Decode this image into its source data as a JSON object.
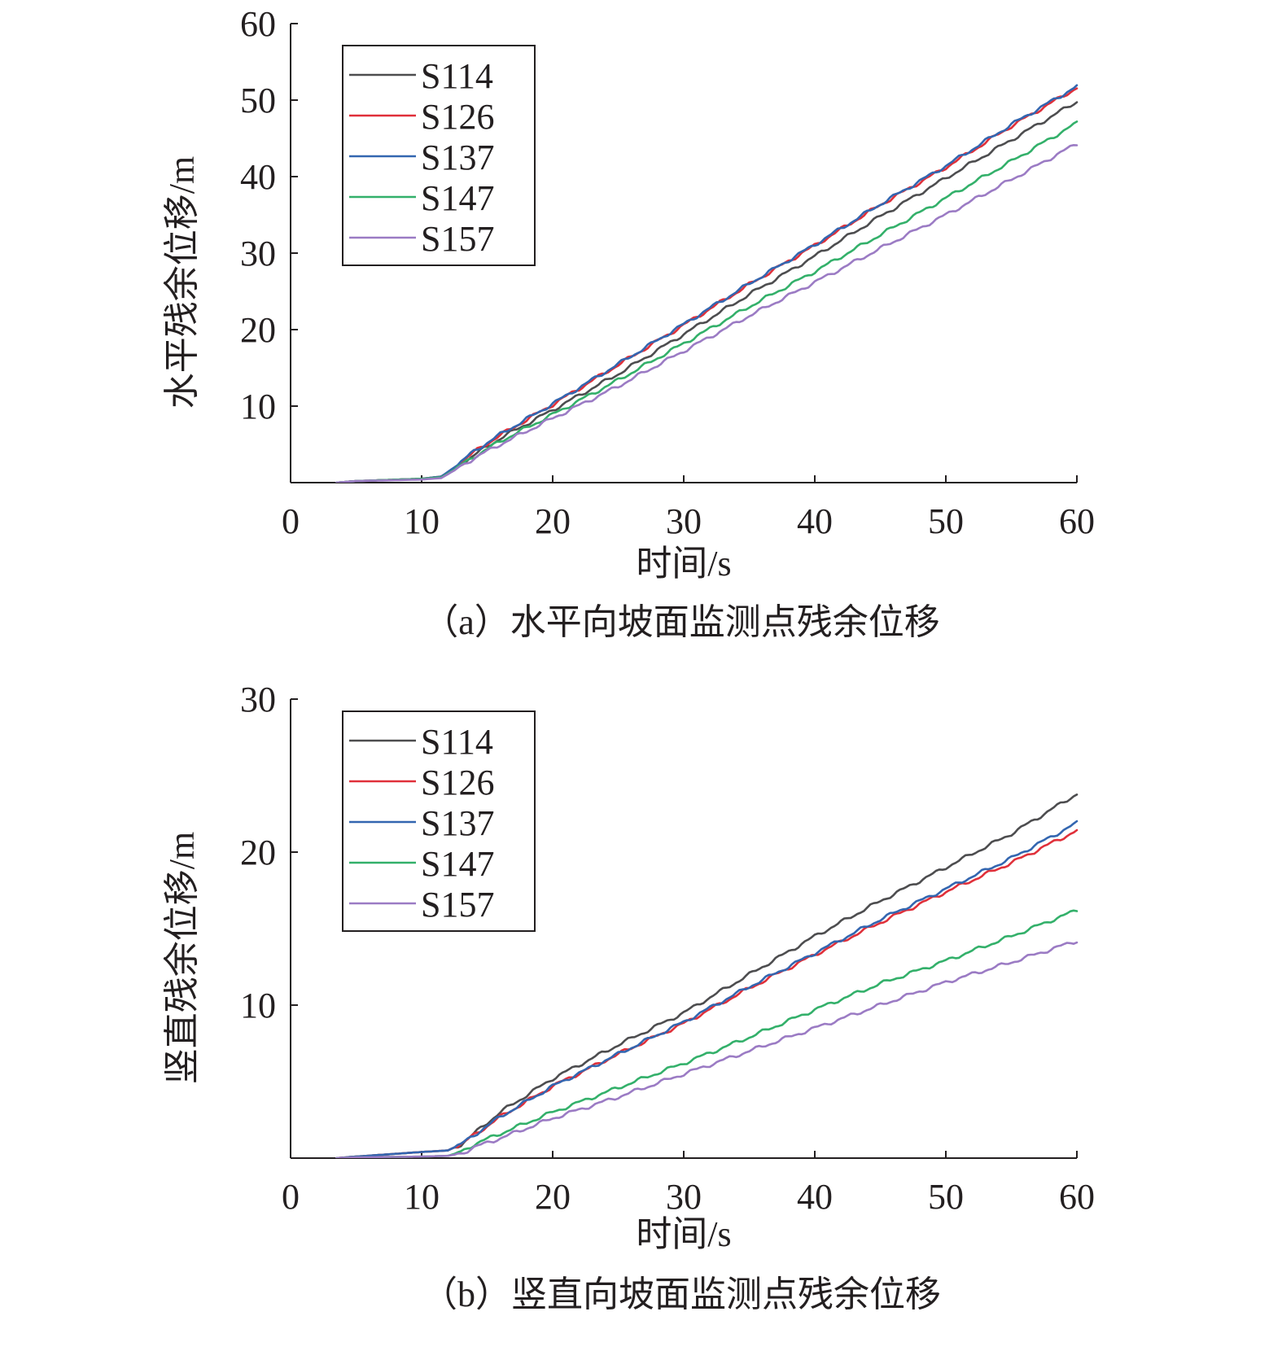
{
  "colors": {
    "S114": "#4d4d4f",
    "S126": "#e0303a",
    "S137": "#3366b0",
    "S147": "#33b06a",
    "S157": "#9b7bc4",
    "axis": "#231f20"
  },
  "chart_data": [
    {
      "type": "line",
      "title": "",
      "caption": "（a）水平向坡面监测点残余位移",
      "xlabel": "时间/s",
      "ylabel": "水平残余位移/m",
      "xlim": [
        0,
        60
      ],
      "ylim": [
        0,
        60
      ],
      "xticks": [
        0,
        10,
        20,
        30,
        40,
        50,
        60
      ],
      "yticks": [
        10,
        20,
        30,
        40,
        50,
        60
      ],
      "xtick_labels": [
        "0",
        "10",
        "20",
        "30",
        "40",
        "50",
        "60"
      ],
      "ytick_labels": [
        "10",
        "20",
        "30",
        "40",
        "50",
        "60"
      ],
      "legend_position": "top-left",
      "grid": false,
      "series": [
        {
          "name": "S114",
          "x": [
            3.5,
            5,
            10,
            11.5,
            12.5,
            14,
            16,
            20,
            25,
            30,
            35,
            40,
            45,
            50,
            55,
            60
          ],
          "y": [
            0,
            0.2,
            0.5,
            0.8,
            1.8,
            3.6,
            5.8,
            9.5,
            14.2,
            19.4,
            24.6,
            29.6,
            34.8,
            39.8,
            44.8,
            49.8
          ]
        },
        {
          "name": "S126",
          "x": [
            3.5,
            5,
            10,
            11.5,
            12.5,
            14,
            16,
            20,
            25,
            30,
            35,
            40,
            45,
            50,
            55,
            60
          ],
          "y": [
            0,
            0.2,
            0.5,
            0.8,
            1.9,
            4.0,
            6.2,
            10.2,
            15.4,
            20.6,
            25.9,
            31.0,
            36.3,
            41.2,
            46.6,
            51.6
          ]
        },
        {
          "name": "S137",
          "x": [
            3.5,
            5,
            10,
            11.5,
            12.5,
            14,
            16,
            20,
            25,
            30,
            35,
            40,
            45,
            50,
            55,
            60
          ],
          "y": [
            0,
            0.2,
            0.5,
            0.8,
            2.0,
            4.1,
            6.3,
            10.3,
            15.5,
            20.7,
            26.0,
            31.1,
            36.4,
            41.4,
            46.8,
            51.8
          ]
        },
        {
          "name": "S147",
          "x": [
            3.5,
            5,
            10,
            11.5,
            12.5,
            14,
            16,
            20,
            25,
            30,
            35,
            40,
            45,
            50,
            55,
            60
          ],
          "y": [
            0,
            0.2,
            0.5,
            0.7,
            1.7,
            3.4,
            5.4,
            8.9,
            13.4,
            18.2,
            23.0,
            27.6,
            32.4,
            37.2,
            42.0,
            47.0
          ]
        },
        {
          "name": "S157",
          "x": [
            3.5,
            5,
            10,
            11.5,
            12.5,
            14,
            16,
            20,
            25,
            30,
            35,
            40,
            45,
            50,
            55,
            60
          ],
          "y": [
            0,
            0.2,
            0.4,
            0.6,
            1.6,
            3.2,
            5.0,
            8.4,
            12.6,
            17.2,
            21.8,
            26.2,
            30.6,
            35.0,
            39.6,
            44.3
          ]
        }
      ]
    },
    {
      "type": "line",
      "title": "",
      "caption": "（b）竖直向坡面监测点残余位移",
      "xlabel": "时间/s",
      "ylabel": "竖直残余位移/m",
      "xlim": [
        0,
        60
      ],
      "ylim": [
        0,
        30
      ],
      "xticks": [
        0,
        10,
        20,
        30,
        40,
        50,
        60
      ],
      "yticks": [
        10,
        20,
        30
      ],
      "xtick_labels": [
        "0",
        "10",
        "20",
        "30",
        "40",
        "50",
        "60"
      ],
      "ytick_labels": [
        "10",
        "20",
        "30"
      ],
      "legend_position": "top-left",
      "grid": false,
      "series": [
        {
          "name": "S114",
          "x": [
            3.5,
            5,
            10,
            12,
            13,
            14,
            16,
            20,
            25,
            30,
            35,
            40,
            45,
            50,
            55,
            60
          ],
          "y": [
            0,
            0.1,
            0.4,
            0.5,
            0.9,
            1.6,
            3.0,
            5.2,
            7.4,
            9.5,
            12.0,
            14.5,
            16.8,
            19.0,
            21.2,
            23.8
          ]
        },
        {
          "name": "S126",
          "x": [
            3.5,
            5,
            10,
            12,
            13,
            14,
            16,
            20,
            25,
            30,
            35,
            40,
            45,
            50,
            55,
            60
          ],
          "y": [
            0,
            0.1,
            0.4,
            0.5,
            0.9,
            1.5,
            2.7,
            4.7,
            6.8,
            8.8,
            11.1,
            13.3,
            15.4,
            17.4,
            19.3,
            21.4
          ]
        },
        {
          "name": "S137",
          "x": [
            3.5,
            5,
            10,
            12,
            13,
            14,
            16,
            20,
            25,
            30,
            35,
            40,
            45,
            50,
            55,
            60
          ],
          "y": [
            0,
            0.1,
            0.4,
            0.5,
            0.9,
            1.5,
            2.7,
            4.7,
            6.8,
            8.9,
            11.2,
            13.4,
            15.6,
            17.6,
            19.6,
            21.9
          ]
        },
        {
          "name": "S147",
          "x": [
            3.5,
            5,
            10,
            12,
            13,
            14,
            16,
            20,
            25,
            30,
            35,
            40,
            45,
            50,
            55,
            60
          ],
          "y": [
            0,
            0.05,
            0.1,
            0.15,
            0.4,
            0.9,
            1.6,
            3.0,
            4.6,
            6.2,
            7.9,
            9.7,
            11.4,
            12.9,
            14.5,
            16.2
          ]
        },
        {
          "name": "S157",
          "x": [
            3.5,
            5,
            10,
            12,
            13,
            14,
            16,
            20,
            25,
            30,
            35,
            40,
            45,
            50,
            55,
            60
          ],
          "y": [
            0,
            0.05,
            0.1,
            0.15,
            0.3,
            0.7,
            1.3,
            2.6,
            4.0,
            5.5,
            7.0,
            8.5,
            10.0,
            11.5,
            12.8,
            14.2
          ]
        }
      ]
    }
  ]
}
